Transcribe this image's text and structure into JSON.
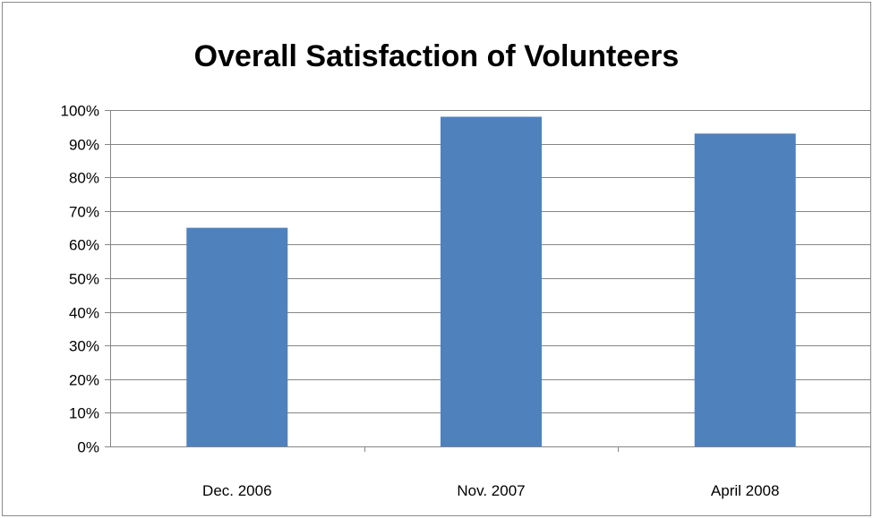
{
  "chart_data": {
    "type": "bar",
    "title": "Overall Satisfaction of Volunteers",
    "xlabel": "",
    "ylabel": "",
    "categories": [
      "Dec. 2006",
      "Nov. 2007",
      "April 2008"
    ],
    "values": [
      65,
      98,
      93
    ],
    "value_unit": "%",
    "ylim": [
      0,
      100
    ],
    "yticks": [
      0,
      10,
      20,
      30,
      40,
      50,
      60,
      70,
      80,
      90,
      100
    ],
    "ytick_labels": [
      "0%",
      "10%",
      "20%",
      "30%",
      "40%",
      "50%",
      "60%",
      "70%",
      "80%",
      "90%",
      "100%"
    ],
    "grid": true,
    "legend": "none",
    "bar_color": "#4f81bd",
    "gridline_color": "#868686"
  }
}
